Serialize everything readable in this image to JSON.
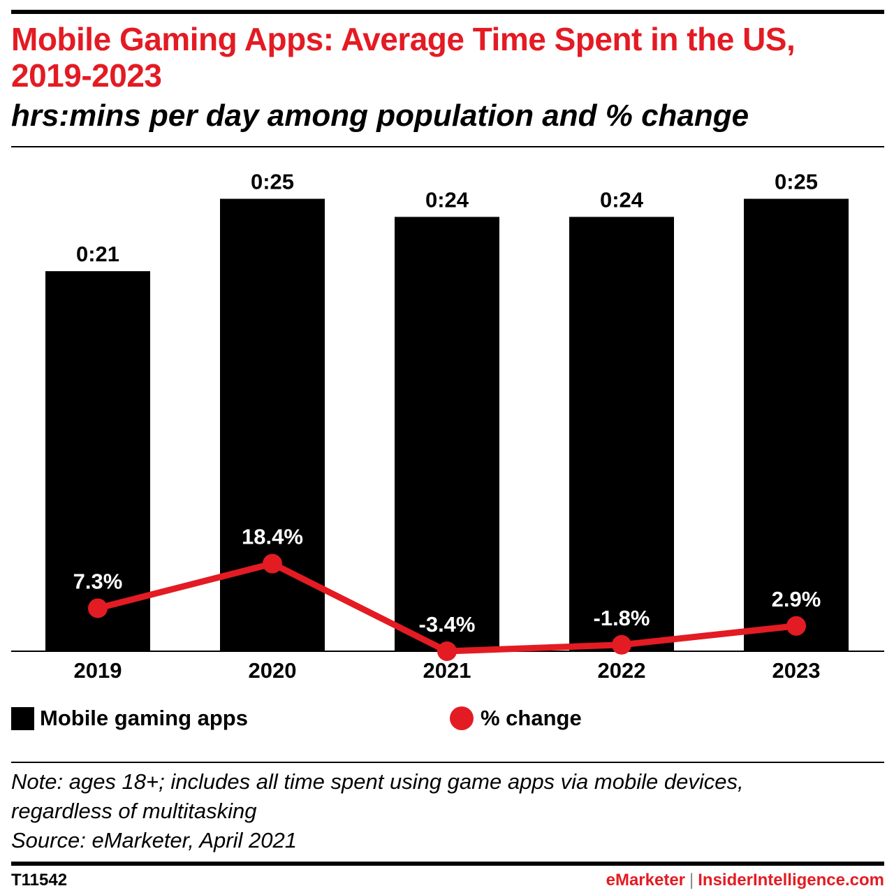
{
  "header": {
    "title": "Mobile Gaming Apps: Average Time Spent in the US, 2019-2023",
    "subtitle": "hrs:mins per day among population and % change"
  },
  "colors": {
    "accent": "#e31b23",
    "bar": "#000000"
  },
  "chart_data": {
    "type": "bar",
    "title": "Mobile Gaming Apps: Average Time Spent in the US, 2019-2023",
    "subtitle": "hrs:mins per day among population and % change",
    "categories": [
      "2019",
      "2020",
      "2021",
      "2022",
      "2023"
    ],
    "series": [
      {
        "name": "Mobile gaming apps",
        "type": "bar",
        "values_minutes": [
          21,
          25,
          24,
          24,
          25
        ],
        "labels": [
          "0:21",
          "0:25",
          "0:24",
          "0:24",
          "0:25"
        ],
        "color": "#000000"
      },
      {
        "name": "% change",
        "type": "line",
        "values": [
          7.3,
          18.4,
          -3.4,
          -1.8,
          2.9
        ],
        "labels": [
          "7.3%",
          "18.4%",
          "-3.4%",
          "-1.8%",
          "2.9%"
        ],
        "color": "#e31b23"
      }
    ],
    "ylim_minutes": [
      0,
      30
    ],
    "xlabel": "",
    "ylabel": "",
    "grid": false,
    "legend_position": "bottom"
  },
  "legend": {
    "items": [
      {
        "label": "Mobile gaming apps"
      },
      {
        "label": "% change"
      }
    ]
  },
  "notes": {
    "line1": "Note: ages 18+; includes all time spent using game apps via mobile devices,",
    "line2": "regardless of multitasking",
    "source": "Source: eMarketer, April 2021"
  },
  "footer": {
    "id": "T11542",
    "brand_left": "eMarketer",
    "separator": "|",
    "brand_right": "InsiderIntelligence.com"
  }
}
